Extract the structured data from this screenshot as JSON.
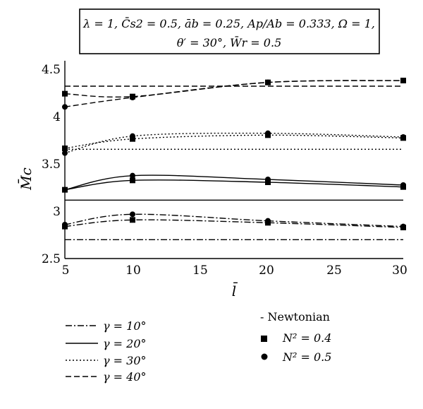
{
  "chart_data": {
    "type": "line",
    "title_lines": [
      "λ = 1, C̄s2 = 0.5, āb = 0.25, Ap/Ab = 0.333, Ω = 1,",
      "θ′ = 30°, W̄r = 0.5"
    ],
    "xlabel": "l̄",
    "ylabel": "M̄c",
    "xlim": [
      5,
      30
    ],
    "ylim": [
      2.5,
      4.6
    ],
    "xticks": [
      "5",
      "10",
      "15",
      "20",
      "25",
      "30"
    ],
    "yticks": [
      "2.5",
      "3",
      "3.5",
      "4",
      "4.5"
    ],
    "x": [
      5,
      10,
      20,
      30
    ],
    "gamma_legend": [
      {
        "label": "γ = 10°",
        "dash": "dashdot"
      },
      {
        "label": "γ = 20°",
        "dash": "solid"
      },
      {
        "label": "γ = 30°",
        "dash": "dotted"
      },
      {
        "label": "γ = 40°",
        "dash": "dashed"
      }
    ],
    "marker_legend": [
      {
        "label": "- Newtonian",
        "marker": "none"
      },
      {
        "label": "N² = 0.4",
        "marker": "square"
      },
      {
        "label": "N² = 0.5",
        "marker": "circle"
      }
    ],
    "newtonian": [
      {
        "gamma": "10",
        "dash": "dashdot",
        "value": 2.7
      },
      {
        "gamma": "20",
        "dash": "solid",
        "value": 3.12
      },
      {
        "gamma": "30",
        "dash": "dotted",
        "value": 3.66
      },
      {
        "gamma": "40",
        "dash": "dashed",
        "value": 4.33
      }
    ],
    "series": [
      {
        "gamma": "10",
        "N2": "0.4",
        "dash": "dashdot",
        "marker": "square",
        "values": [
          2.84,
          2.91,
          2.88,
          2.83
        ]
      },
      {
        "gamma": "10",
        "N2": "0.5",
        "dash": "dashdot",
        "marker": "circle",
        "values": [
          2.86,
          2.97,
          2.9,
          2.84
        ]
      },
      {
        "gamma": "20",
        "N2": "0.4",
        "dash": "solid",
        "marker": "square",
        "values": [
          3.23,
          3.33,
          3.31,
          3.26
        ]
      },
      {
        "gamma": "20",
        "N2": "0.5",
        "dash": "solid",
        "marker": "circle",
        "values": [
          3.23,
          3.38,
          3.34,
          3.28
        ]
      },
      {
        "gamma": "30",
        "N2": "0.4",
        "dash": "dotted",
        "marker": "square",
        "values": [
          3.67,
          3.77,
          3.81,
          3.78
        ]
      },
      {
        "gamma": "30",
        "N2": "0.5",
        "dash": "dotted",
        "marker": "circle",
        "values": [
          3.62,
          3.8,
          3.83,
          3.79
        ]
      },
      {
        "gamma": "40",
        "N2": "0.4",
        "dash": "dashed",
        "marker": "square",
        "values": [
          4.25,
          4.22,
          4.37,
          4.39
        ]
      },
      {
        "gamma": "40",
        "N2": "0.5",
        "dash": "dashed",
        "marker": "circle",
        "values": [
          4.11,
          4.21,
          4.37,
          4.39
        ]
      }
    ]
  }
}
